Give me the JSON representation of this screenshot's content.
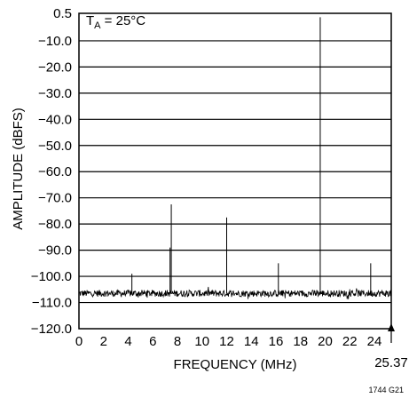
{
  "chart_data": {
    "type": "line",
    "title": "",
    "xlabel": "FREQUENCY (MHz)",
    "ylabel": "AMPLITUDE (dBFS)",
    "xlim": [
      0,
      25.37
    ],
    "ylim": [
      -120,
      0.5
    ],
    "x_ticks": [
      0,
      2,
      4,
      6,
      8,
      10,
      12,
      14,
      16,
      18,
      20,
      22,
      24
    ],
    "x_tick_labels": [
      "0",
      "2",
      "4",
      "6",
      "8",
      "10",
      "12",
      "14",
      "16",
      "18",
      "20",
      "22",
      "24"
    ],
    "x_end_label": "25.37",
    "y_ticks": [
      0.5,
      -10,
      -20,
      -30,
      -40,
      -50,
      -60,
      -70,
      -80,
      -90,
      -100,
      -110,
      -120
    ],
    "y_tick_labels": [
      "0.5",
      "−10.0",
      "−20.0",
      "−30.0",
      "−40.0",
      "−50.0",
      "−60.0",
      "−70.0",
      "−80.0",
      "−90.0",
      "−100.0",
      "−110.0",
      "−120.0"
    ],
    "grid": "horizontal",
    "annotation": {
      "main": "T",
      "sub": "A",
      "rest": " = 25°C"
    },
    "figure_code": "1744 G21",
    "noise_floor_dbfs": -106.5,
    "peaks": [
      {
        "x": 19.6,
        "y": -1
      },
      {
        "x": 7.5,
        "y": -72.5
      },
      {
        "x": 12.0,
        "y": -77.5
      },
      {
        "x": 16.2,
        "y": -95
      },
      {
        "x": 23.7,
        "y": -95
      },
      {
        "x": 4.3,
        "y": -99
      },
      {
        "x": 7.4,
        "y": -89
      }
    ]
  }
}
